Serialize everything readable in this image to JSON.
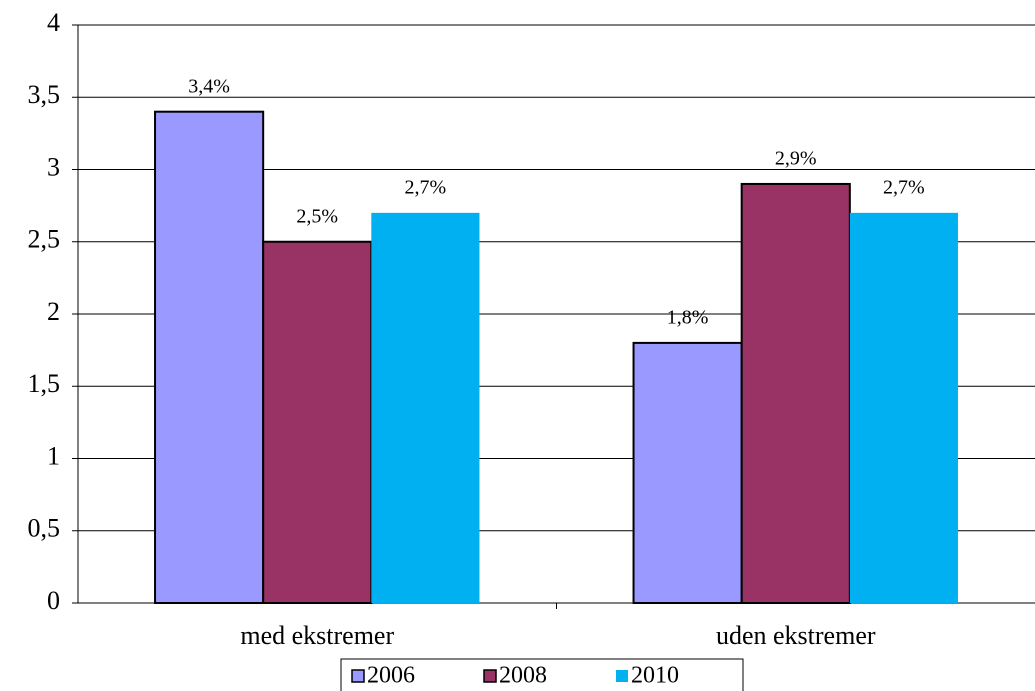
{
  "chart_data": {
    "type": "bar",
    "categories": [
      "med ekstremer",
      "uden ekstremer"
    ],
    "series": [
      {
        "name": "2006",
        "color": "#9999ff",
        "outline": true,
        "values": [
          3.4,
          1.8
        ],
        "value_labels": [
          "3,4%",
          "1,8%"
        ]
      },
      {
        "name": "2008",
        "color": "#993366",
        "outline": true,
        "values": [
          2.5,
          2.9
        ],
        "value_labels": [
          "2,5%",
          "2,9%"
        ]
      },
      {
        "name": "2010",
        "color": "#00b0f0",
        "outline": false,
        "values": [
          2.7,
          2.7
        ],
        "value_labels": [
          "2,7%",
          "2,7%"
        ]
      }
    ],
    "ylim": [
      0,
      4
    ],
    "yticks": [
      0,
      {
        "value": 0.5,
        "label": "0,5"
      },
      1,
      {
        "value": 1.5,
        "label": "1,5"
      },
      2,
      {
        "value": 2.5,
        "label": "2,5"
      },
      3,
      {
        "value": 3.5,
        "label": "3,5"
      },
      4
    ],
    "grid": true,
    "legend": "bottom"
  }
}
